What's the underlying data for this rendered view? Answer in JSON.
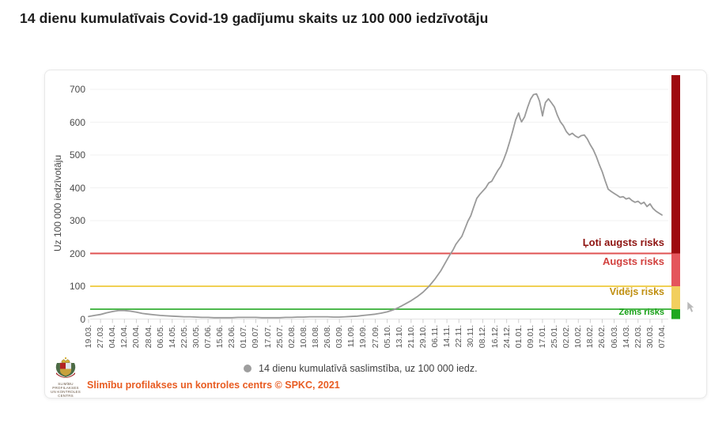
{
  "page": {
    "title": "14 dienu kumulatīvais Covid-19 gadījumu skaits uz 100 000 iedzīvotāju"
  },
  "legend": {
    "marker_color": "#9e9e9e",
    "label": "14 dienu kumulatīvā saslimstība, uz 100 000 iedz."
  },
  "footer": {
    "source": "Slimību profilakses un kontroles centrs © SPKC, 2021",
    "logo_caption_1": "SLIMĪBU PROFILAKSES",
    "logo_caption_2": "UN KONTROLES CENTRS"
  },
  "chart_data": {
    "type": "line",
    "title": "14 dienu kumulatīvais Covid-19 gadījumu skaits uz 100 000 iedzīvotāju",
    "ylabel": "Uz 100 000 iedzīvotāju",
    "ylim": [
      0,
      700
    ],
    "y_ticks": [
      0,
      100,
      200,
      300,
      400,
      500,
      600,
      700
    ],
    "grid": "horizontal",
    "x_label_step_days": 8,
    "x_range_days": 384,
    "x_labels": [
      "19.03.",
      "27.03.",
      "04.04.",
      "12.04.",
      "20.04.",
      "28.04.",
      "06.05.",
      "14.05.",
      "22.05.",
      "30.05.",
      "07.06.",
      "15.06.",
      "23.06.",
      "01.07.",
      "09.07.",
      "17.07.",
      "25.07.",
      "02.08.",
      "10.08.",
      "18.08.",
      "26.08.",
      "03.09.",
      "11.09.",
      "19.09.",
      "27.09.",
      "05.10.",
      "13.10.",
      "21.10.",
      "29.10.",
      "06.11.",
      "14.11.",
      "22.11.",
      "30.11.",
      "08.12.",
      "16.12.",
      "24.12.",
      "01.01.",
      "09.01.",
      "17.01.",
      "25.01.",
      "02.02.",
      "10.02.",
      "18.02.",
      "26.02.",
      "06.03.",
      "14.03.",
      "22.03.",
      "30.03.",
      "07.04."
    ],
    "risk_zones": [
      {
        "label": "Ļoti augsts risks",
        "from": 200,
        "to": 750,
        "band_color": "#9e0b10",
        "label_color": "#8e1310",
        "line_value": 200,
        "line_color": "#e05252",
        "label_value": 235
      },
      {
        "label": "Augsts risks",
        "from": 100,
        "to": 200,
        "band_color": "#e4555c",
        "label_color": "#d2403e",
        "line_value": 100,
        "line_color": "#f0d053",
        "label_value": 176
      },
      {
        "label": "Vidējs risks",
        "from": 30,
        "to": 100,
        "band_color": "#f2cf5e",
        "label_color": "#c08f10",
        "line_value": 30,
        "line_color": "#4db84d",
        "label_value": 83
      },
      {
        "label": "Zems risks",
        "from": 0,
        "to": 30,
        "band_color": "#1fa81f",
        "label_color": "#16a016",
        "line_value": null,
        "line_color": null,
        "label_value": 20
      }
    ],
    "series": [
      {
        "name": "14 dienu kumulatīvā saslimstība, uz 100 000 iedz.",
        "color": "#9a9a9a",
        "points": [
          [
            0,
            8
          ],
          [
            4,
            11
          ],
          [
            8,
            14
          ],
          [
            12,
            19
          ],
          [
            16,
            23
          ],
          [
            20,
            26
          ],
          [
            24,
            26
          ],
          [
            28,
            24
          ],
          [
            32,
            21
          ],
          [
            36,
            17
          ],
          [
            40,
            15
          ],
          [
            44,
            13
          ],
          [
            48,
            11
          ],
          [
            52,
            10
          ],
          [
            56,
            9
          ],
          [
            60,
            8
          ],
          [
            64,
            7
          ],
          [
            68,
            7
          ],
          [
            72,
            6
          ],
          [
            76,
            5
          ],
          [
            80,
            5
          ],
          [
            84,
            4
          ],
          [
            88,
            4
          ],
          [
            92,
            4
          ],
          [
            96,
            4
          ],
          [
            100,
            5
          ],
          [
            104,
            5
          ],
          [
            108,
            5
          ],
          [
            112,
            5
          ],
          [
            116,
            4
          ],
          [
            120,
            4
          ],
          [
            124,
            4
          ],
          [
            128,
            4
          ],
          [
            132,
            5
          ],
          [
            136,
            5
          ],
          [
            140,
            6
          ],
          [
            144,
            6
          ],
          [
            148,
            7
          ],
          [
            152,
            7
          ],
          [
            156,
            7
          ],
          [
            160,
            7
          ],
          [
            164,
            6
          ],
          [
            168,
            6
          ],
          [
            172,
            7
          ],
          [
            176,
            8
          ],
          [
            180,
            9
          ],
          [
            184,
            11
          ],
          [
            188,
            13
          ],
          [
            192,
            15
          ],
          [
            196,
            18
          ],
          [
            200,
            22
          ],
          [
            204,
            28
          ],
          [
            208,
            36
          ],
          [
            212,
            46
          ],
          [
            216,
            56
          ],
          [
            220,
            68
          ],
          [
            224,
            82
          ],
          [
            228,
            100
          ],
          [
            232,
            122
          ],
          [
            236,
            148
          ],
          [
            240,
            180
          ],
          [
            242,
            196
          ],
          [
            244,
            210
          ],
          [
            246,
            228
          ],
          [
            248,
            240
          ],
          [
            250,
            252
          ],
          [
            252,
            275
          ],
          [
            254,
            298
          ],
          [
            256,
            315
          ],
          [
            258,
            342
          ],
          [
            260,
            368
          ],
          [
            262,
            380
          ],
          [
            264,
            390
          ],
          [
            266,
            400
          ],
          [
            268,
            415
          ],
          [
            270,
            420
          ],
          [
            272,
            436
          ],
          [
            274,
            452
          ],
          [
            276,
            465
          ],
          [
            278,
            486
          ],
          [
            280,
            510
          ],
          [
            282,
            540
          ],
          [
            284,
            572
          ],
          [
            286,
            607
          ],
          [
            288,
            628
          ],
          [
            289,
            612
          ],
          [
            290,
            601
          ],
          [
            292,
            616
          ],
          [
            294,
            645
          ],
          [
            296,
            670
          ],
          [
            298,
            684
          ],
          [
            300,
            686
          ],
          [
            301,
            676
          ],
          [
            302,
            664
          ],
          [
            303,
            642
          ],
          [
            304,
            619
          ],
          [
            305,
            641
          ],
          [
            306,
            660
          ],
          [
            308,
            671
          ],
          [
            310,
            659
          ],
          [
            312,
            646
          ],
          [
            314,
            621
          ],
          [
            316,
            601
          ],
          [
            318,
            589
          ],
          [
            320,
            571
          ],
          [
            322,
            561
          ],
          [
            324,
            566
          ],
          [
            326,
            558
          ],
          [
            328,
            553
          ],
          [
            330,
            559
          ],
          [
            332,
            561
          ],
          [
            334,
            549
          ],
          [
            336,
            531
          ],
          [
            338,
            516
          ],
          [
            340,
            496
          ],
          [
            342,
            471
          ],
          [
            344,
            449
          ],
          [
            346,
            421
          ],
          [
            348,
            396
          ],
          [
            350,
            389
          ],
          [
            352,
            383
          ],
          [
            354,
            377
          ],
          [
            356,
            371
          ],
          [
            358,
            373
          ],
          [
            360,
            366
          ],
          [
            362,
            369
          ],
          [
            364,
            361
          ],
          [
            366,
            356
          ],
          [
            368,
            359
          ],
          [
            370,
            351
          ],
          [
            372,
            356
          ],
          [
            374,
            343
          ],
          [
            376,
            351
          ],
          [
            378,
            337
          ],
          [
            380,
            329
          ],
          [
            382,
            323
          ],
          [
            384,
            317
          ]
        ]
      }
    ]
  }
}
